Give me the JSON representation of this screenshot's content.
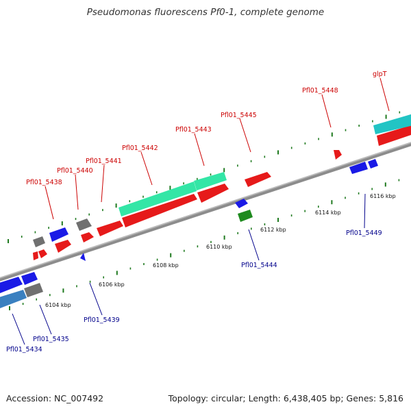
{
  "header": {
    "title": "Pseudomonas fluorescens Pf0-1, complete genome"
  },
  "footer": {
    "accession": "Accession: NC_007492",
    "topology": "Topology: circular; Length: 6,438,405 bp; Genes: 5,816"
  },
  "colors": {
    "forward_label": "#cc0000",
    "reverse_label": "#00008b",
    "backbone": "#8c8c8c",
    "tick": "#1f7a1f"
  },
  "genome_map": {
    "ticks": [
      "6104 kbp",
      "6106 kbp",
      "6108 kbp",
      "6110 kbp",
      "6112 kbp",
      "6114 kbp",
      "6116 kbp"
    ],
    "forward_labels": [
      "Pfl01_5438",
      "Pfl01_5440",
      "Pfl01_5441",
      "Pfl01_5442",
      "Pfl01_5443",
      "Pfl01_5445",
      "Pfl01_5448",
      "glpT"
    ],
    "reverse_labels": [
      "Pfl01_5434",
      "Pfl01_5435",
      "Pfl01_5439",
      "Pfl01_5444",
      "Pfl01_5449"
    ]
  }
}
